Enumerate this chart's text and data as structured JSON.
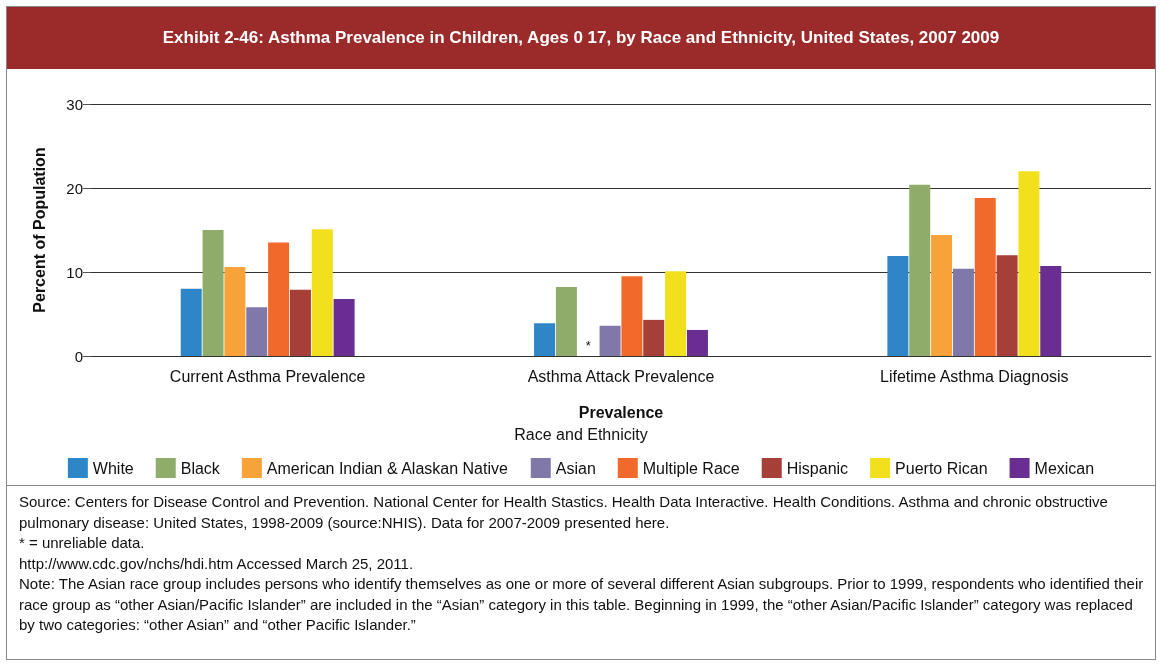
{
  "chart_data": {
    "type": "bar",
    "title": "Exhibit 2-46: Asthma Prevalence in Children, Ages 0 17, by Race and Ethnicity, United States, 2007  2009",
    "categories": [
      "Current Asthma Prevalence",
      "Asthma Attack Prevalence",
      "Lifetime Asthma Diagnosis"
    ],
    "series": [
      {
        "name": "White",
        "color": "#2e86c8",
        "values": [
          8.0,
          3.9,
          11.9
        ]
      },
      {
        "name": "Black",
        "color": "#8fac6b",
        "values": [
          15.0,
          8.2,
          20.4
        ]
      },
      {
        "name": "American Indian & Alaskan Native",
        "color": "#f8a23a",
        "values": [
          10.6,
          null,
          14.4
        ]
      },
      {
        "name": "Asian",
        "color": "#8078a8",
        "values": [
          5.8,
          3.6,
          10.4
        ]
      },
      {
        "name": "Multiple Race",
        "color": "#f26a2b",
        "values": [
          13.5,
          9.5,
          18.8
        ]
      },
      {
        "name": "Hispanic",
        "color": "#a63f37",
        "values": [
          7.9,
          4.3,
          12.0
        ]
      },
      {
        "name": "Puerto Rican",
        "color": "#f2e01c",
        "values": [
          15.1,
          10.1,
          22.0
        ]
      },
      {
        "name": "Mexican",
        "color": "#6a2d91",
        "values": [
          6.8,
          3.1,
          10.7
        ]
      }
    ],
    "xlabel": "Prevalence",
    "ylabel": "Percent of Population",
    "legend_title": "Race and Ethnicity",
    "ylim": [
      0,
      30
    ],
    "yticks": [
      0,
      10,
      20,
      30
    ],
    "grid": "y",
    "legend": "bottom",
    "annotations": [
      {
        "text": "*",
        "x": "Asthma Attack Prevalence",
        "y": 0
      },
      "Source: Centers for Disease Control and Prevention. National Center for Health Stastics. Health Data Interactive. Health Conditions. Asthma and chronic obstructive pulmonary disease: United States, 1998-2009 (source:NHIS). Data for 2007-2009 presented here.",
      "* = unreliable data.",
      "http://www.cdc.gov/nchs/hdi.htm  Accessed March 25, 2011.",
      "Note: The Asian race group includes persons who identify themselves as one or more of several different Asian subgroups. Prior to 1999, respondents who identified their race group as “other Asian/Pacific Islander” are included in the “Asian” category in this table. Beginning in 1999, the “other Asian/Pacific Islander” category was replaced by two categories: “other Asian” and “other Pacific Islander.”"
    ]
  }
}
